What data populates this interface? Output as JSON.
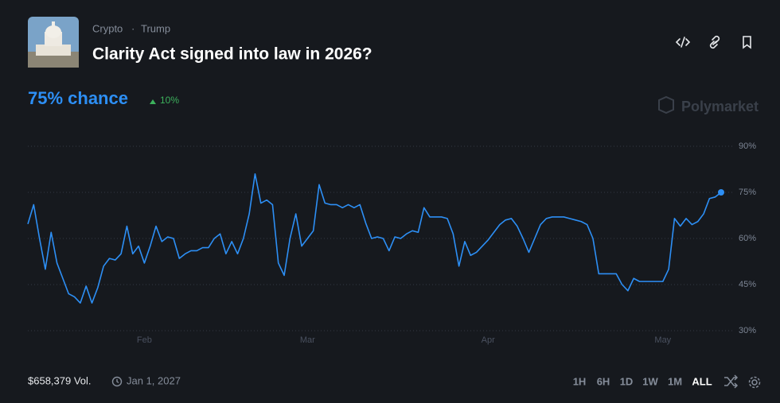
{
  "header": {
    "tags": [
      "Crypto",
      "Trump"
    ],
    "separator": "·",
    "chance": "75% chance",
    "change": "10%",
    "watermark": "Polymarket"
  },
  "footer": {
    "volume": "$658,379 Vol.",
    "end_date": "Jan 1, 2027",
    "ranges": [
      "1H",
      "6H",
      "1D",
      "1W",
      "1M",
      "ALL"
    ],
    "active_range": "ALL"
  },
  "chart_data": {
    "type": "line",
    "title": "Clarity Act signed into law in 2026?",
    "color": "#2d8ff5",
    "grid": true,
    "xlim": [
      0,
      119
    ],
    "xticks": [
      {
        "value": 20,
        "label": "Feb"
      },
      {
        "value": 48,
        "label": "Mar"
      },
      {
        "value": 79,
        "label": "Apr"
      },
      {
        "value": 109,
        "label": "May"
      }
    ],
    "ylim": [
      26,
      94
    ],
    "yticks": [
      {
        "value": 30,
        "label": "30%"
      },
      {
        "value": 45,
        "label": "45%"
      },
      {
        "value": 60,
        "label": "60%"
      },
      {
        "value": 75,
        "label": "75%"
      },
      {
        "value": 90,
        "label": "90%"
      }
    ],
    "values": [
      64.7,
      71,
      60,
      50,
      62,
      52,
      47,
      42,
      41,
      39,
      44.5,
      39,
      44,
      51,
      53.5,
      53,
      55,
      64,
      55,
      57.5,
      52,
      57.5,
      64,
      59,
      60.5,
      60,
      53.5,
      55,
      56,
      56,
      57,
      57,
      60,
      61.5,
      55,
      59,
      55,
      60,
      68,
      81,
      71.5,
      72.5,
      71,
      52,
      48,
      60,
      68,
      57.5,
      60,
      62.5,
      77.5,
      71.5,
      71,
      71,
      70,
      71,
      70,
      71,
      65,
      60,
      60.5,
      60,
      56,
      60.5,
      60,
      61.5,
      62.5,
      62,
      70,
      67,
      67,
      67,
      66.5,
      61.5,
      51,
      59,
      54.5,
      55.5,
      57.5,
      59.5,
      62,
      64.5,
      66,
      66.5,
      64,
      60,
      55.5,
      60,
      64.5,
      66.5,
      67,
      67,
      67,
      66.5,
      66,
      65.5,
      64.5,
      60,
      48.5,
      48.5,
      48.5,
      48.5,
      45,
      43,
      47,
      46,
      46,
      46,
      46,
      46,
      50,
      66.5,
      64,
      66.5,
      64.5,
      65.5,
      68,
      73,
      73.5,
      75
    ]
  }
}
